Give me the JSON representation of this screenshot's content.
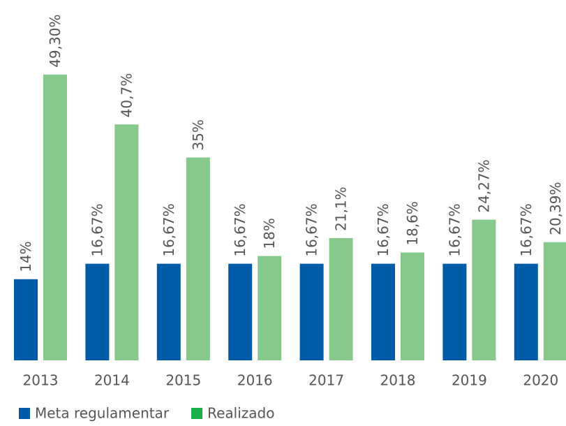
{
  "chart_data": {
    "type": "bar",
    "categories": [
      "2013",
      "2014",
      "2015",
      "2016",
      "2017",
      "2018",
      "2019",
      "2020"
    ],
    "series": [
      {
        "name": "Meta regulamentar",
        "color": "#005ca8",
        "legend_color": "#005ca8",
        "values": [
          14,
          16.67,
          16.67,
          16.67,
          16.67,
          16.67,
          16.67,
          16.67
        ],
        "value_labels": [
          "14%",
          "16,67%",
          "16,67%",
          "16,67%",
          "16,67%",
          "16,67%",
          "16,67%",
          "16,67%"
        ]
      },
      {
        "name": "Realizado",
        "color": "#87c98a",
        "legend_color": "#1aaf4b",
        "values": [
          49.3,
          40.7,
          35,
          18,
          21.1,
          18.6,
          24.27,
          20.39
        ],
        "value_labels": [
          "49,30%",
          "40,7%",
          "35%",
          "18%",
          "21,1%",
          "18,6%",
          "24,27%",
          "20,39%"
        ]
      }
    ],
    "ylim": [
      0,
      62
    ]
  }
}
